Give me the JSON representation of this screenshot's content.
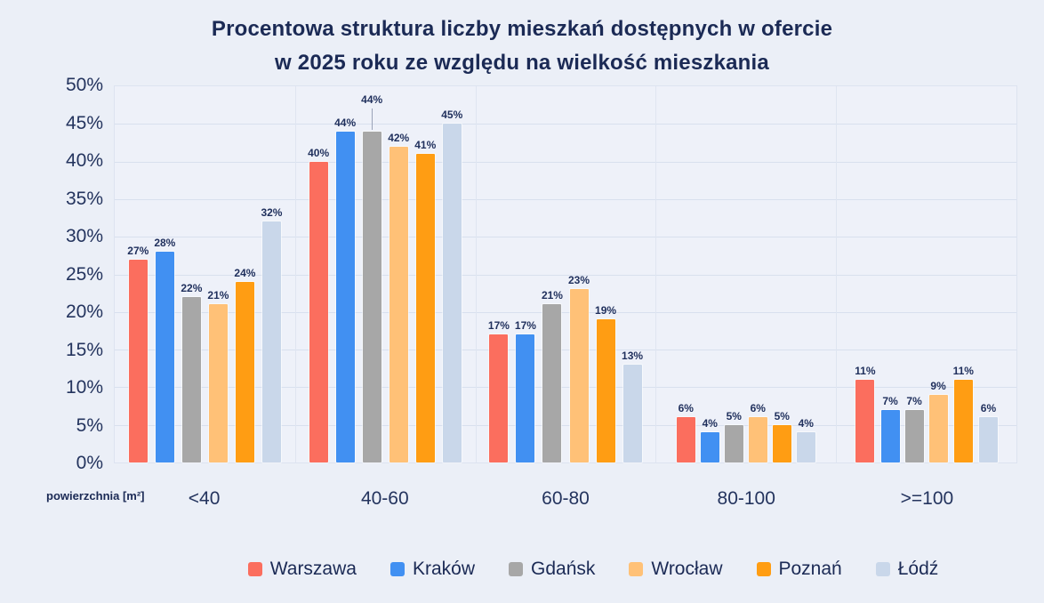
{
  "title": {
    "line1": "Procentowa struktura liczby mieszkań dostępnych w ofercie",
    "line2": "w 2025 roku ze względu na wielkość mieszkania"
  },
  "axis": {
    "x_unit_label": "powierzchnia [m²]"
  },
  "colors": {
    "background": "#ebeff7",
    "plot_background": "#eef1f9",
    "gridline": "#d8e0ee",
    "title_text": "#1b2a55",
    "tick_text": "#24345e",
    "value_label_text": "#1f2f5c"
  },
  "chart_data": {
    "type": "bar",
    "title": "Procentowa struktura liczby mieszkań dostępnych w ofercie w 2025 roku ze względu na wielkość mieszkania",
    "xlabel": "powierzchnia [m²]",
    "ylabel": "",
    "categories": [
      "<40",
      "40-60",
      "60-80",
      "80-100",
      ">=100"
    ],
    "series": [
      {
        "name": "Warszawa",
        "color": "#fb6e5e",
        "values": [
          27,
          40,
          17,
          6,
          11
        ]
      },
      {
        "name": "Kraków",
        "color": "#4190f2",
        "values": [
          28,
          44,
          17,
          4,
          7
        ]
      },
      {
        "name": "Gdańsk",
        "color": "#a7a7a7",
        "values": [
          22,
          44,
          21,
          5,
          7
        ]
      },
      {
        "name": "Wrocław",
        "color": "#ffc177",
        "values": [
          21,
          42,
          23,
          6,
          9
        ]
      },
      {
        "name": "Poznań",
        "color": "#ff9d13",
        "values": [
          24,
          41,
          19,
          5,
          11
        ]
      },
      {
        "name": "Łódź",
        "color": "#c9d7ea",
        "values": [
          32,
          45,
          13,
          4,
          6
        ]
      }
    ],
    "ylim": [
      0,
      50
    ],
    "ytick_step": 5,
    "ytick_labels": [
      "0%",
      "5%",
      "10%",
      "15%",
      "20%",
      "25%",
      "30%",
      "35%",
      "40%",
      "45%",
      "50%"
    ],
    "value_label_suffix": "%",
    "grid": "horizontal",
    "legend_position": "bottom",
    "callouts": [
      {
        "series": "Gdańsk",
        "category": "40-60"
      }
    ]
  }
}
